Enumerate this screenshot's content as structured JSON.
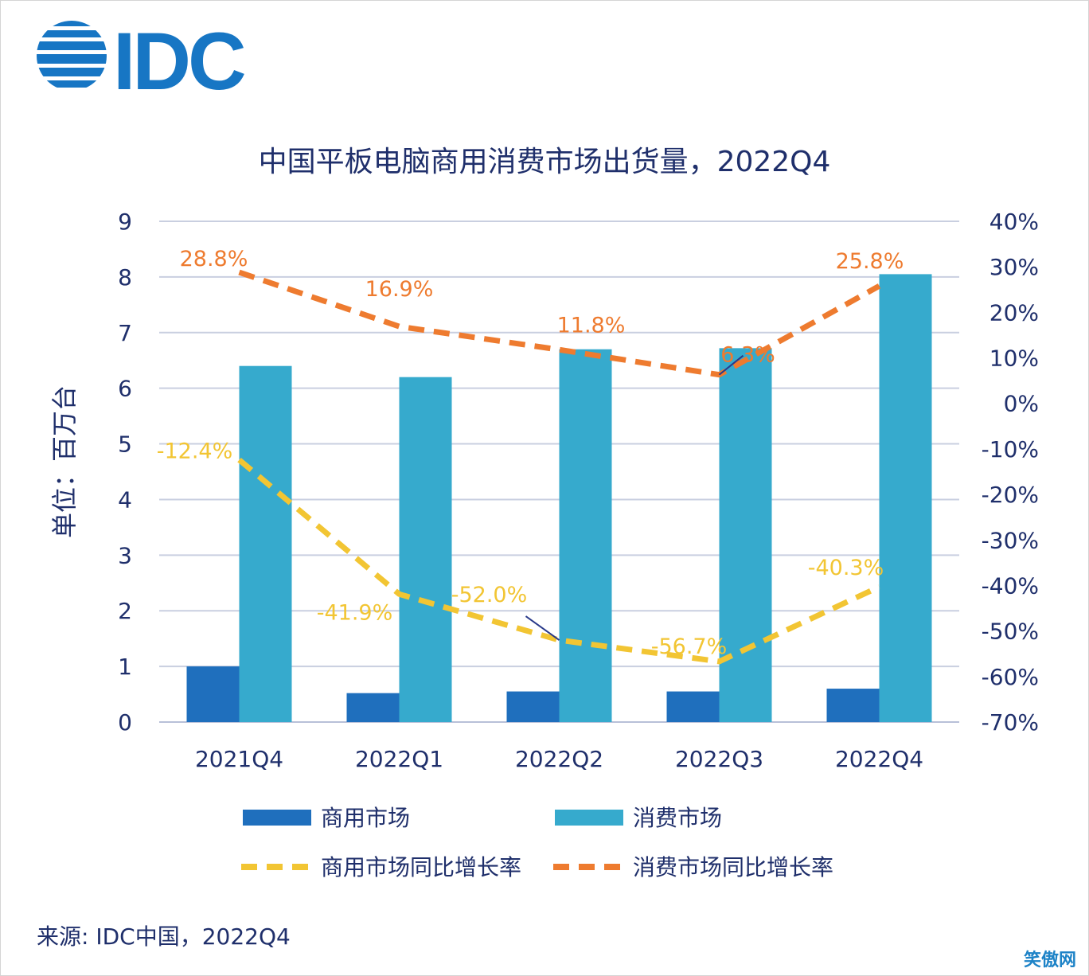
{
  "brand": {
    "logo_text": "IDC",
    "color": "#1776c4"
  },
  "chart_data": {
    "type": "bar+line",
    "title": "中国平板电脑商用消费市场出货量，2022Q4",
    "ylabel": "单位：百万台",
    "y_left": {
      "min": 0,
      "max": 9,
      "ticks": [
        "0",
        "1",
        "2",
        "3",
        "4",
        "5",
        "6",
        "7",
        "8",
        "9"
      ]
    },
    "y_right": {
      "min": -70,
      "max": 40,
      "ticks": [
        "-70%",
        "-60%",
        "-50%",
        "-40%",
        "-30%",
        "-20%",
        "-10%",
        "0%",
        "10%",
        "20%",
        "30%",
        "40%"
      ]
    },
    "categories": [
      "2021Q4",
      "2022Q1",
      "2022Q2",
      "2022Q3",
      "2022Q4"
    ],
    "bar_series": [
      {
        "name": "商用市场",
        "color": "#1f6fbd",
        "values": [
          1.0,
          0.52,
          0.55,
          0.55,
          0.6
        ]
      },
      {
        "name": "消费市场",
        "color": "#36aacd",
        "values": [
          6.4,
          6.2,
          6.7,
          6.72,
          8.05
        ]
      }
    ],
    "line_series": [
      {
        "name": "商用市场同比增长率",
        "color": "#f2c533",
        "values": [
          -12.4,
          -41.9,
          -52.0,
          -56.7,
          -40.3
        ],
        "labels": [
          "-12.4%",
          "-41.9%",
          "-52.0%",
          "-56.7%",
          "-40.3%"
        ]
      },
      {
        "name": "消费市场同比增长率",
        "color": "#ee7b2f",
        "values": [
          28.8,
          16.9,
          11.8,
          6.3,
          25.8
        ],
        "labels": [
          "28.8%",
          "16.9%",
          "11.8%",
          "6.3%",
          "25.8%"
        ]
      }
    ],
    "grid": true,
    "legend_position": "bottom"
  },
  "source": "来源: IDC中国，2022Q4",
  "watermark": "笑傲网"
}
